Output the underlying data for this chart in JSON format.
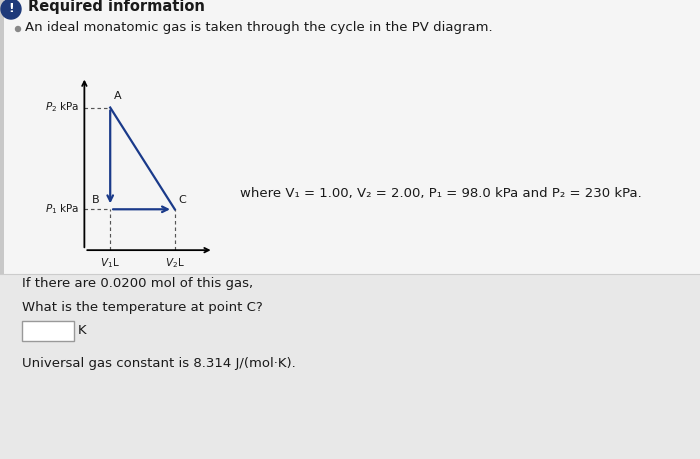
{
  "title": "Required information",
  "subtitle": "An ideal monatomic gas is taken through the cycle in the PV diagram.",
  "where_text": "where V₁ = 1.00, V₂ = 2.00, P₁ = 98.0 kPa and P₂ = 230 kPa.",
  "question1": "If there are 0.0200 mol of this gas,",
  "question2": "What is the temperature at point C?",
  "answer_unit": "K",
  "universal_gas": "Universal gas constant is 8.314 J/(mol·K).",
  "diagram": {
    "V1": 1.0,
    "V2": 2.0,
    "P1": 98.0,
    "P2": 230.0,
    "cycle_color": "#1a3a8a",
    "dashed_color": "#555555",
    "axis_color": "#000000"
  },
  "bg_color": "#e8e8e8",
  "top_box_bg": "#f5f5f5",
  "bottom_bg": "#e8e8e8",
  "input_box_color": "#ffffff",
  "text_color": "#1a1a1a",
  "title_color": "#1a1a1a",
  "icon_color": "#1e3a7a",
  "font_size_title": 10.5,
  "font_size_body": 9.5,
  "font_size_small": 8.5
}
